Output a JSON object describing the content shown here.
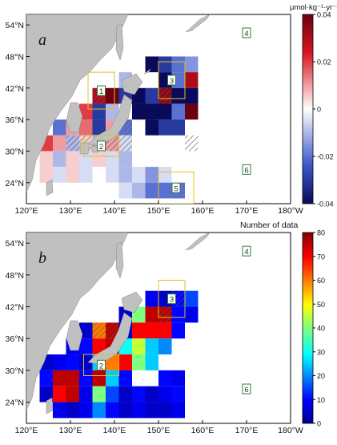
{
  "panels": [
    {
      "id": "a",
      "label": "a",
      "colorbar": {
        "title": "μmol·kg⁻¹·yr⁻¹",
        "ticks": [
          "0.04",
          "0.02",
          "0",
          "-0.02",
          "-0.04"
        ],
        "range": [
          -0.04,
          0.04
        ],
        "type": "diverging"
      },
      "regions": [
        "1",
        "2",
        "3",
        "4",
        "5",
        "6"
      ]
    },
    {
      "id": "b",
      "label": "b",
      "colorbar": {
        "title": "Number of data",
        "ticks": [
          "80",
          "70",
          "60",
          "50",
          "40",
          "30",
          "20",
          "10",
          "0"
        ],
        "range": [
          0,
          80
        ],
        "type": "jet"
      },
      "regions": [
        "2",
        "3",
        "4",
        "6"
      ]
    }
  ],
  "axes": {
    "lat_ticks": [
      "54°N",
      "48°N",
      "42°N",
      "36°N",
      "30°N",
      "24°N"
    ],
    "lon_ticks": [
      "120°E",
      "130°E",
      "140°E",
      "150°E",
      "160°E",
      "170°E",
      "180°W"
    ]
  },
  "colors": {
    "land": "#c0c0c0",
    "region_box": "#e0c020",
    "region_label": "#2e7d32"
  },
  "chart_data": [
    {
      "type": "heatmap",
      "panel": "a",
      "description_units": "μmol·kg⁻¹·yr⁻¹",
      "cell_size_deg": 3,
      "cells": [
        [
          147,
          45,
          -0.04
        ],
        [
          150,
          45,
          -0.03
        ],
        [
          153,
          45,
          -0.02
        ],
        [
          156,
          45,
          -0.015
        ],
        [
          150,
          42,
          -0.04
        ],
        [
          153,
          42,
          -0.02
        ],
        [
          156,
          42,
          0.03
        ],
        [
          141,
          42,
          -0.01
        ],
        [
          135,
          39,
          0.03
        ],
        [
          138,
          39,
          0.04
        ],
        [
          141,
          39,
          -0.03
        ],
        [
          144,
          39,
          -0.04
        ],
        [
          147,
          39,
          -0.03
        ],
        [
          150,
          39,
          0.035
        ],
        [
          153,
          39,
          -0.04
        ],
        [
          156,
          39,
          -0.04
        ],
        [
          132,
          36,
          0.02
        ],
        [
          135,
          36,
          -0.03
        ],
        [
          138,
          36,
          -0.01
        ],
        [
          144,
          36,
          -0.04
        ],
        [
          147,
          36,
          -0.04
        ],
        [
          150,
          36,
          -0.04
        ],
        [
          153,
          36,
          -0.02
        ],
        [
          156,
          36,
          0.04
        ],
        [
          126,
          33,
          -0.02
        ],
        [
          129,
          33,
          0.01
        ],
        [
          132,
          33,
          0.015
        ],
        [
          135,
          33,
          -0.03
        ],
        [
          138,
          33,
          0.01
        ],
        [
          141,
          33,
          -0.02
        ],
        [
          147,
          33,
          -0.04
        ],
        [
          150,
          33,
          -0.03
        ],
        [
          153,
          33,
          -0.03
        ],
        [
          123,
          30,
          0.02
        ],
        [
          126,
          30,
          0.01
        ],
        [
          129,
          30,
          -0.01
        ],
        [
          132,
          30,
          0.005
        ],
        [
          135,
          30,
          -0.01
        ],
        [
          138,
          30,
          0.01
        ],
        [
          141,
          30,
          -0.005
        ],
        [
          123,
          27,
          0.005
        ],
        [
          126,
          27,
          -0.01
        ],
        [
          129,
          27,
          0.005
        ],
        [
          132,
          27,
          -0.005
        ],
        [
          135,
          27,
          0.005
        ],
        [
          138,
          27,
          -0.005
        ],
        [
          141,
          27,
          -0.01
        ],
        [
          123,
          24,
          0.005
        ],
        [
          126,
          24,
          -0.005
        ],
        [
          129,
          24,
          0.005
        ],
        [
          132,
          24,
          -0.005
        ],
        [
          138,
          24,
          -0.005
        ],
        [
          141,
          24,
          -0.01
        ],
        [
          144,
          24,
          -0.005
        ],
        [
          147,
          24,
          -0.015
        ],
        [
          150,
          24,
          -0.005
        ],
        [
          141,
          21,
          -0.005
        ],
        [
          144,
          21,
          -0.01
        ],
        [
          147,
          21,
          -0.02
        ],
        [
          150,
          21,
          -0.02
        ],
        [
          153,
          21,
          -0.02
        ]
      ]
    },
    {
      "type": "heatmap",
      "panel": "b",
      "description_units": "count",
      "cell_size_deg": 3,
      "cells": [
        [
          153,
          42,
          10
        ],
        [
          156,
          42,
          15
        ],
        [
          150,
          42,
          5
        ],
        [
          147,
          42,
          8
        ],
        [
          141,
          39,
          5
        ],
        [
          144,
          39,
          40
        ],
        [
          147,
          39,
          75
        ],
        [
          150,
          39,
          75
        ],
        [
          153,
          39,
          10
        ],
        [
          156,
          39,
          8
        ],
        [
          132,
          36,
          5
        ],
        [
          135,
          36,
          60
        ],
        [
          138,
          36,
          75
        ],
        [
          141,
          36,
          5
        ],
        [
          144,
          36,
          70
        ],
        [
          147,
          36,
          70
        ],
        [
          150,
          36,
          70
        ],
        [
          153,
          36,
          10
        ],
        [
          129,
          33,
          8
        ],
        [
          132,
          33,
          10
        ],
        [
          135,
          33,
          70
        ],
        [
          138,
          33,
          75
        ],
        [
          141,
          33,
          30
        ],
        [
          144,
          33,
          45
        ],
        [
          147,
          33,
          25
        ],
        [
          150,
          33,
          20
        ],
        [
          123,
          30,
          5
        ],
        [
          126,
          30,
          8
        ],
        [
          129,
          30,
          10
        ],
        [
          132,
          30,
          5
        ],
        [
          135,
          30,
          25
        ],
        [
          138,
          30,
          60
        ],
        [
          141,
          30,
          70
        ],
        [
          144,
          30,
          40
        ],
        [
          147,
          30,
          25
        ],
        [
          123,
          27,
          10
        ],
        [
          126,
          27,
          75
        ],
        [
          129,
          27,
          75
        ],
        [
          132,
          27,
          10
        ],
        [
          135,
          27,
          75
        ],
        [
          138,
          27,
          25
        ],
        [
          141,
          27,
          10
        ],
        [
          150,
          27,
          10
        ],
        [
          153,
          27,
          8
        ],
        [
          123,
          24,
          5
        ],
        [
          126,
          24,
          70
        ],
        [
          129,
          24,
          75
        ],
        [
          132,
          24,
          8
        ],
        [
          135,
          24,
          40
        ],
        [
          138,
          24,
          15
        ],
        [
          141,
          24,
          5
        ],
        [
          144,
          24,
          10
        ],
        [
          147,
          24,
          5
        ],
        [
          150,
          24,
          8
        ],
        [
          153,
          24,
          10
        ],
        [
          126,
          21,
          8
        ],
        [
          129,
          21,
          5
        ],
        [
          132,
          21,
          8
        ],
        [
          135,
          21,
          20
        ],
        [
          138,
          21,
          10
        ],
        [
          141,
          21,
          5
        ],
        [
          144,
          21,
          8
        ],
        [
          147,
          21,
          5
        ],
        [
          150,
          21,
          5
        ],
        [
          153,
          21,
          8
        ]
      ]
    }
  ]
}
